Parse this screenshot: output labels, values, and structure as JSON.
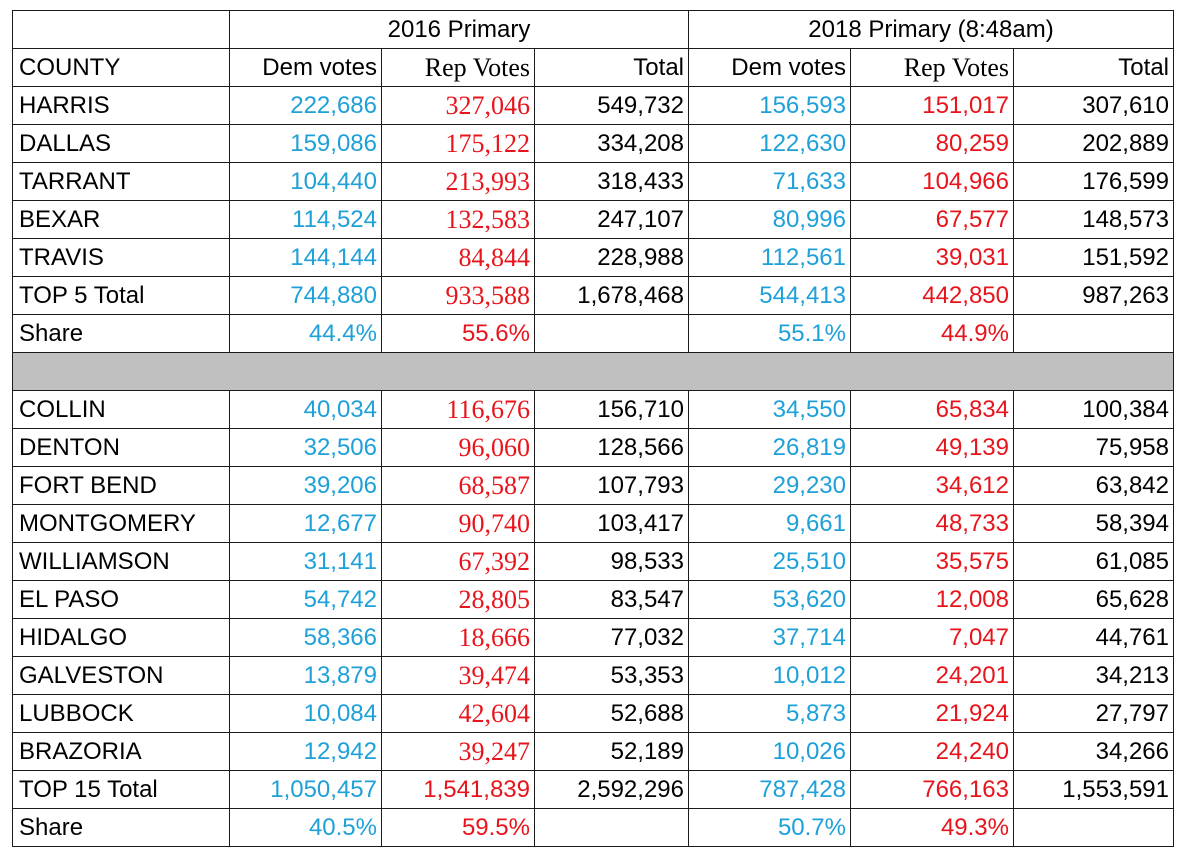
{
  "group_headers": {
    "y2016": "2016 Primary",
    "y2018": "2018 Primary (8:48am)"
  },
  "column_headers": {
    "county": "COUNTY",
    "dem_2016": "Dem votes",
    "rep_2016": "Rep Votes",
    "total_2016": "Total",
    "dem_2018": "Dem votes",
    "rep_2018": "Rep Votes",
    "total_2018": "Total"
  },
  "top5_rows": [
    {
      "county": "HARRIS",
      "dem_2016": "222,686",
      "rep_2016": "327,046",
      "total_2016": "549,732",
      "dem_2018": "156,593",
      "rep_2018": "151,017",
      "total_2018": "307,610"
    },
    {
      "county": "DALLAS",
      "dem_2016": "159,086",
      "rep_2016": "175,122",
      "total_2016": "334,208",
      "dem_2018": "122,630",
      "rep_2018": "80,259",
      "total_2018": "202,889"
    },
    {
      "county": "TARRANT",
      "dem_2016": "104,440",
      "rep_2016": "213,993",
      "total_2016": "318,433",
      "dem_2018": "71,633",
      "rep_2018": "104,966",
      "total_2018": "176,599"
    },
    {
      "county": "BEXAR",
      "dem_2016": "114,524",
      "rep_2016": "132,583",
      "total_2016": "247,107",
      "dem_2018": "80,996",
      "rep_2018": "67,577",
      "total_2018": "148,573"
    },
    {
      "county": "TRAVIS",
      "dem_2016": "144,144",
      "rep_2016": "84,844",
      "total_2016": "228,988",
      "dem_2018": "112,561",
      "rep_2018": "39,031",
      "total_2018": "151,592"
    }
  ],
  "top5_total": {
    "label": "TOP 5 Total",
    "dem_2016": "744,880",
    "rep_2016": "933,588",
    "total_2016": "1,678,468",
    "dem_2018": "544,413",
    "rep_2018": "442,850",
    "total_2018": "987,263"
  },
  "top5_share": {
    "label": "Share",
    "dem_2016": "44.4%",
    "rep_2016": "55.6%",
    "dem_2018": "55.1%",
    "rep_2018": "44.9%"
  },
  "next10_rows": [
    {
      "county": "COLLIN",
      "dem_2016": "40,034",
      "rep_2016": "116,676",
      "total_2016": "156,710",
      "dem_2018": "34,550",
      "rep_2018": "65,834",
      "total_2018": "100,384"
    },
    {
      "county": "DENTON",
      "dem_2016": "32,506",
      "rep_2016": "96,060",
      "total_2016": "128,566",
      "dem_2018": "26,819",
      "rep_2018": "49,139",
      "total_2018": "75,958"
    },
    {
      "county": "FORT BEND",
      "dem_2016": "39,206",
      "rep_2016": "68,587",
      "total_2016": "107,793",
      "dem_2018": "29,230",
      "rep_2018": "34,612",
      "total_2018": "63,842"
    },
    {
      "county": "MONTGOMERY",
      "dem_2016": "12,677",
      "rep_2016": "90,740",
      "total_2016": "103,417",
      "dem_2018": "9,661",
      "rep_2018": "48,733",
      "total_2018": "58,394"
    },
    {
      "county": "WILLIAMSON",
      "dem_2016": "31,141",
      "rep_2016": "67,392",
      "total_2016": "98,533",
      "dem_2018": "25,510",
      "rep_2018": "35,575",
      "total_2018": "61,085"
    },
    {
      "county": "EL PASO",
      "dem_2016": "54,742",
      "rep_2016": "28,805",
      "total_2016": "83,547",
      "dem_2018": "53,620",
      "rep_2018": "12,008",
      "total_2018": "65,628"
    },
    {
      "county": "HIDALGO",
      "dem_2016": "58,366",
      "rep_2016": "18,666",
      "total_2016": "77,032",
      "dem_2018": "37,714",
      "rep_2018": "7,047",
      "total_2018": "44,761"
    },
    {
      "county": "GALVESTON",
      "dem_2016": "13,879",
      "rep_2016": "39,474",
      "total_2016": "53,353",
      "dem_2018": "10,012",
      "rep_2018": "24,201",
      "total_2018": "34,213"
    },
    {
      "county": "LUBBOCK",
      "dem_2016": "10,084",
      "rep_2016": "42,604",
      "total_2016": "52,688",
      "dem_2018": "5,873",
      "rep_2018": "21,924",
      "total_2018": "27,797"
    },
    {
      "county": "BRAZORIA",
      "dem_2016": "12,942",
      "rep_2016": "39,247",
      "total_2016": "52,189",
      "dem_2018": "10,026",
      "rep_2018": "24,240",
      "total_2018": "34,266"
    }
  ],
  "top15_total": {
    "label": "TOP 15 Total",
    "dem_2016": "1,050,457",
    "rep_2016": "1,541,839",
    "total_2016": "2,592,296",
    "dem_2018": "787,428",
    "rep_2018": "766,163",
    "total_2018": "1,553,591"
  },
  "top15_share": {
    "label": "Share",
    "dem_2016": "40.5%",
    "rep_2016": "59.5%",
    "dem_2018": "50.7%",
    "rep_2018": "49.3%"
  },
  "colors": {
    "dem": "#1ea0d8",
    "rep": "#e8141b",
    "separator": "#c0c0c0"
  }
}
